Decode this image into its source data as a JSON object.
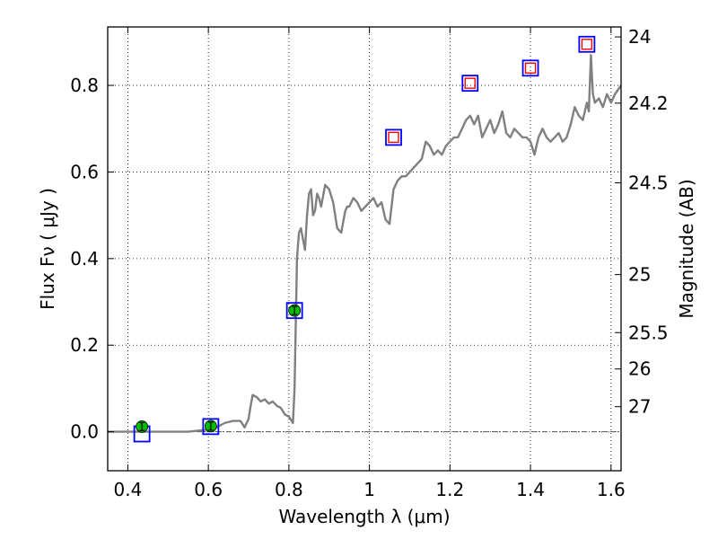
{
  "chart_data": {
    "type": "scatter",
    "xlabel": "Wavelength  λ (μm)",
    "ylabel_left": "Flux  Fν  ( μJy )",
    "ylabel_right": "Magnitude (AB)",
    "xlim": [
      0.35,
      1.625
    ],
    "ylim": [
      -0.09,
      0.935
    ],
    "grid": true,
    "x_ticks": [
      0.4,
      0.6,
      0.8,
      1.0,
      1.2,
      1.4,
      1.6
    ],
    "x_tick_labels": [
      "0.4",
      "0.6",
      "0.8",
      "1",
      "1.2",
      "1.4",
      "1.6"
    ],
    "y_ticks": [
      0.0,
      0.2,
      0.4,
      0.6,
      0.8
    ],
    "y_tick_labels": [
      "0.0",
      "0.2",
      "0.4",
      "0.6",
      "0.8"
    ],
    "right_ticks": [
      {
        "label": "24",
        "flux": 0.912
      },
      {
        "label": "24.2",
        "flux": 0.759
      },
      {
        "label": "24.5",
        "flux": 0.575
      },
      {
        "label": "25",
        "flux": 0.363
      },
      {
        "label": "25.5",
        "flux": 0.229
      },
      {
        "label": "26",
        "flux": 0.145
      },
      {
        "label": "27",
        "flux": 0.058
      }
    ],
    "zero_line": 0.0,
    "series": [
      {
        "kind": "model_spectrum",
        "color": "#808080",
        "x": [
          0.35,
          0.4,
          0.45,
          0.5,
          0.55,
          0.6,
          0.62,
          0.64,
          0.66,
          0.68,
          0.69,
          0.7,
          0.705,
          0.71,
          0.72,
          0.73,
          0.74,
          0.75,
          0.76,
          0.77,
          0.78,
          0.79,
          0.8,
          0.81,
          0.814,
          0.82,
          0.825,
          0.83,
          0.84,
          0.845,
          0.85,
          0.855,
          0.86,
          0.865,
          0.87,
          0.875,
          0.88,
          0.89,
          0.9,
          0.91,
          0.92,
          0.93,
          0.94,
          0.945,
          0.95,
          0.96,
          0.97,
          0.98,
          0.99,
          1.0,
          1.01,
          1.02,
          1.03,
          1.04,
          1.05,
          1.06,
          1.07,
          1.08,
          1.09,
          1.1,
          1.11,
          1.12,
          1.13,
          1.14,
          1.15,
          1.16,
          1.17,
          1.18,
          1.19,
          1.2,
          1.21,
          1.22,
          1.23,
          1.24,
          1.25,
          1.26,
          1.27,
          1.28,
          1.29,
          1.3,
          1.31,
          1.32,
          1.33,
          1.34,
          1.35,
          1.36,
          1.37,
          1.38,
          1.39,
          1.4,
          1.41,
          1.42,
          1.43,
          1.44,
          1.45,
          1.46,
          1.47,
          1.48,
          1.49,
          1.5,
          1.51,
          1.52,
          1.53,
          1.54,
          1.545,
          1.55,
          1.555,
          1.56,
          1.57,
          1.58,
          1.59,
          1.6,
          1.61,
          1.625
        ],
        "y": [
          0.0,
          0.0,
          0.0,
          0.0,
          0.0,
          0.005,
          0.01,
          0.02,
          0.025,
          0.025,
          0.01,
          0.03,
          0.06,
          0.085,
          0.08,
          0.07,
          0.075,
          0.065,
          0.07,
          0.06,
          0.055,
          0.04,
          0.035,
          0.02,
          0.1,
          0.4,
          0.46,
          0.47,
          0.42,
          0.5,
          0.55,
          0.56,
          0.5,
          0.51,
          0.55,
          0.54,
          0.52,
          0.57,
          0.56,
          0.53,
          0.47,
          0.46,
          0.51,
          0.52,
          0.52,
          0.54,
          0.53,
          0.51,
          0.52,
          0.53,
          0.54,
          0.52,
          0.53,
          0.49,
          0.48,
          0.56,
          0.58,
          0.59,
          0.59,
          0.6,
          0.61,
          0.62,
          0.63,
          0.67,
          0.66,
          0.64,
          0.65,
          0.64,
          0.66,
          0.67,
          0.68,
          0.68,
          0.7,
          0.72,
          0.73,
          0.71,
          0.73,
          0.68,
          0.7,
          0.72,
          0.69,
          0.71,
          0.74,
          0.69,
          0.68,
          0.7,
          0.69,
          0.68,
          0.68,
          0.67,
          0.64,
          0.68,
          0.7,
          0.68,
          0.67,
          0.68,
          0.69,
          0.67,
          0.68,
          0.71,
          0.75,
          0.73,
          0.72,
          0.76,
          0.74,
          0.87,
          0.78,
          0.76,
          0.77,
          0.75,
          0.78,
          0.76,
          0.78,
          0.8
        ]
      },
      {
        "kind": "model_photometry",
        "marker": "square",
        "color": "#0000ff",
        "x": [
          0.435,
          0.606,
          0.814,
          1.06,
          1.25,
          1.4,
          1.54
        ],
        "y": [
          -0.005,
          0.012,
          0.28,
          0.68,
          0.805,
          0.84,
          0.895
        ]
      },
      {
        "kind": "detections",
        "marker": "circle",
        "color": "#00bb00",
        "x": [
          0.435,
          0.606,
          0.814
        ],
        "y": [
          0.012,
          0.013,
          0.28
        ]
      },
      {
        "kind": "upper_limits",
        "marker": "square",
        "color": "#ff0000",
        "x": [
          1.06,
          1.25,
          1.4,
          1.54
        ],
        "y": [
          0.68,
          0.805,
          0.84,
          0.895
        ]
      }
    ]
  }
}
